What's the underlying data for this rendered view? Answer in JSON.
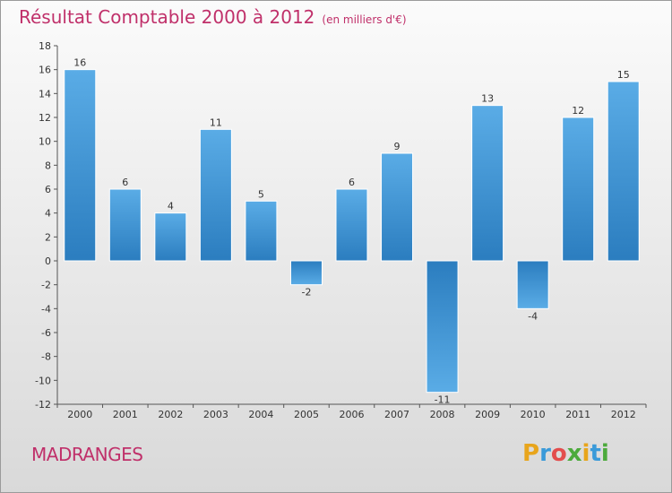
{
  "header": {
    "title": "Résultat Comptable 2000 à 2012",
    "subtitle": "(en milliers d'€)"
  },
  "footer": {
    "commune": "MADRANGES",
    "logo_letters": [
      "P",
      "r",
      "o",
      "x",
      "i",
      "t",
      "i"
    ],
    "logo_colors": [
      "#e8a51c",
      "#3a9ad9",
      "#e34d4d",
      "#4caa3c",
      "#e8a51c",
      "#3a9ad9",
      "#4caa3c"
    ]
  },
  "chart_data": {
    "type": "bar",
    "title": "Résultat Comptable 2000 à 2012",
    "subtitle": "(en milliers d'€)",
    "categories": [
      "2000",
      "2001",
      "2002",
      "2003",
      "2004",
      "2005",
      "2006",
      "2007",
      "2008",
      "2009",
      "2010",
      "2011",
      "2012"
    ],
    "values": [
      16,
      6,
      4,
      11,
      5,
      -2,
      6,
      9,
      -11,
      13,
      -4,
      12,
      15
    ],
    "ylim": [
      -12,
      18
    ],
    "yticks": [
      -12,
      -10,
      -8,
      -6,
      -4,
      -2,
      0,
      2,
      4,
      6,
      8,
      10,
      12,
      14,
      16,
      18
    ],
    "grid": false,
    "colors": {
      "bar_light": "#5aace6",
      "bar_dark": "#2b7dbf"
    }
  }
}
